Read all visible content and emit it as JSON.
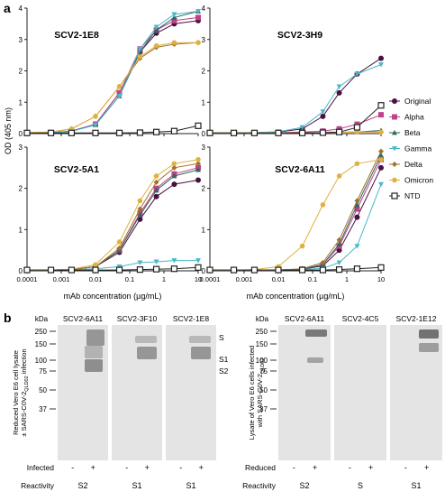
{
  "panel_a": {
    "letter": "a",
    "y_axis_label": "OD (405 nm)",
    "x_axis_label": "mAb concentration (µg/mL)",
    "x_ticks": [
      "0.0001",
      "0.001",
      "0.01",
      "0.1",
      "1",
      "10"
    ],
    "y_ticks_top": [
      "0",
      "1",
      "2",
      "3",
      "4"
    ],
    "y_ticks_bottom": [
      "0",
      "1",
      "2",
      "3"
    ],
    "legend": [
      {
        "name": "Original",
        "color": "#4a1040",
        "marker": "circle"
      },
      {
        "name": "Alpha",
        "color": "#c0408a",
        "marker": "square"
      },
      {
        "name": "Beta",
        "color": "#2a6a60",
        "marker": "triangle-up"
      },
      {
        "name": "Gamma",
        "color": "#4ab8c8",
        "marker": "triangle-down"
      },
      {
        "name": "Delta",
        "color": "#a0722a",
        "marker": "diamond"
      },
      {
        "name": "Omicron",
        "color": "#e0b040",
        "marker": "hexagon"
      },
      {
        "name": "NTD",
        "color": "#222222",
        "marker": "open-square"
      }
    ]
  },
  "chart_data": [
    {
      "type": "line",
      "title": "SCV2-1E8",
      "x_scale": "log",
      "xlim": [
        0.0001,
        10
      ],
      "ylim": [
        0,
        4
      ],
      "x": [
        0.0001,
        0.0005,
        0.002,
        0.01,
        0.05,
        0.2,
        0.6,
        2,
        10
      ],
      "series": [
        {
          "name": "Original",
          "values": [
            0.02,
            0.03,
            0.08,
            0.3,
            1.3,
            2.6,
            3.2,
            3.5,
            3.6
          ]
        },
        {
          "name": "Alpha",
          "values": [
            0.02,
            0.03,
            0.08,
            0.3,
            1.3,
            2.7,
            3.3,
            3.6,
            3.7
          ]
        },
        {
          "name": "Beta",
          "values": [
            0.02,
            0.03,
            0.08,
            0.28,
            1.2,
            2.6,
            3.3,
            3.7,
            3.9
          ]
        },
        {
          "name": "Gamma",
          "values": [
            0.02,
            0.03,
            0.07,
            0.28,
            1.2,
            2.7,
            3.4,
            3.8,
            3.9
          ]
        },
        {
          "name": "Delta",
          "values": [
            0.03,
            0.05,
            0.15,
            0.55,
            1.5,
            2.4,
            2.75,
            2.85,
            2.9
          ]
        },
        {
          "name": "Omicron",
          "values": [
            0.03,
            0.05,
            0.15,
            0.55,
            1.5,
            2.45,
            2.8,
            2.9,
            2.9
          ]
        },
        {
          "name": "NTD",
          "values": [
            0.02,
            0.02,
            0.02,
            0.02,
            0.02,
            0.03,
            0.05,
            0.08,
            0.25
          ]
        }
      ]
    },
    {
      "type": "line",
      "title": "SCV2-3H9",
      "x_scale": "log",
      "xlim": [
        0.0001,
        10
      ],
      "ylim": [
        0,
        4
      ],
      "x": [
        0.0001,
        0.0005,
        0.002,
        0.01,
        0.05,
        0.2,
        0.6,
        2,
        10
      ],
      "series": [
        {
          "name": "Original",
          "values": [
            0.02,
            0.02,
            0.03,
            0.05,
            0.15,
            0.55,
            1.3,
            1.9,
            2.4
          ]
        },
        {
          "name": "Alpha",
          "values": [
            0.02,
            0.02,
            0.02,
            0.03,
            0.05,
            0.08,
            0.15,
            0.3,
            0.6
          ]
        },
        {
          "name": "Beta",
          "values": [
            0.02,
            0.02,
            0.02,
            0.02,
            0.03,
            0.03,
            0.04,
            0.05,
            0.1
          ]
        },
        {
          "name": "Gamma",
          "values": [
            0.02,
            0.02,
            0.03,
            0.06,
            0.2,
            0.7,
            1.5,
            1.9,
            2.2
          ]
        },
        {
          "name": "Delta",
          "values": [
            0.02,
            0.02,
            0.02,
            0.02,
            0.03,
            0.03,
            0.04,
            0.05,
            0.05
          ]
        },
        {
          "name": "Omicron",
          "values": [
            0.02,
            0.02,
            0.02,
            0.02,
            0.03,
            0.03,
            0.04,
            0.05,
            0.05
          ]
        },
        {
          "name": "NTD",
          "values": [
            0.02,
            0.02,
            0.02,
            0.02,
            0.02,
            0.03,
            0.05,
            0.2,
            0.9
          ]
        }
      ]
    },
    {
      "type": "line",
      "title": "SCV2-5A1",
      "x_scale": "log",
      "xlim": [
        0.0001,
        10
      ],
      "ylim": [
        0,
        3
      ],
      "x": [
        0.0001,
        0.0005,
        0.002,
        0.01,
        0.05,
        0.2,
        0.6,
        2,
        10
      ],
      "series": [
        {
          "name": "Original",
          "values": [
            0.02,
            0.02,
            0.03,
            0.1,
            0.45,
            1.25,
            1.8,
            2.1,
            2.2
          ]
        },
        {
          "name": "Alpha",
          "values": [
            0.02,
            0.02,
            0.03,
            0.1,
            0.5,
            1.4,
            2.0,
            2.35,
            2.5
          ]
        },
        {
          "name": "Beta",
          "values": [
            0.02,
            0.02,
            0.03,
            0.1,
            0.5,
            1.35,
            1.95,
            2.3,
            2.45
          ]
        },
        {
          "name": "Gamma",
          "values": [
            0.02,
            0.02,
            0.03,
            0.05,
            0.1,
            0.2,
            0.22,
            0.25,
            0.25
          ]
        },
        {
          "name": "Delta",
          "values": [
            0.02,
            0.02,
            0.03,
            0.1,
            0.55,
            1.5,
            2.15,
            2.5,
            2.6
          ]
        },
        {
          "name": "Omicron",
          "values": [
            0.02,
            0.02,
            0.04,
            0.15,
            0.7,
            1.7,
            2.3,
            2.6,
            2.7
          ]
        },
        {
          "name": "NTD",
          "values": [
            0.02,
            0.02,
            0.02,
            0.02,
            0.02,
            0.03,
            0.04,
            0.05,
            0.08
          ]
        }
      ]
    },
    {
      "type": "line",
      "title": "SCV2-6A11",
      "x_scale": "log",
      "xlim": [
        0.0001,
        10
      ],
      "ylim": [
        0,
        3
      ],
      "x": [
        0.0001,
        0.0005,
        0.002,
        0.01,
        0.05,
        0.2,
        0.6,
        2,
        10
      ],
      "series": [
        {
          "name": "Original",
          "values": [
            0.02,
            0.02,
            0.02,
            0.02,
            0.04,
            0.12,
            0.5,
            1.3,
            2.5
          ]
        },
        {
          "name": "Alpha",
          "values": [
            0.02,
            0.02,
            0.02,
            0.02,
            0.04,
            0.15,
            0.6,
            1.5,
            2.7
          ]
        },
        {
          "name": "Beta",
          "values": [
            0.02,
            0.02,
            0.02,
            0.02,
            0.04,
            0.15,
            0.65,
            1.6,
            2.8
          ]
        },
        {
          "name": "Gamma",
          "values": [
            0.02,
            0.02,
            0.02,
            0.02,
            0.03,
            0.06,
            0.2,
            0.6,
            2.1
          ]
        },
        {
          "name": "Delta",
          "values": [
            0.02,
            0.02,
            0.02,
            0.02,
            0.05,
            0.2,
            0.75,
            1.7,
            2.9
          ]
        },
        {
          "name": "Omicron",
          "values": [
            0.02,
            0.02,
            0.03,
            0.1,
            0.6,
            1.6,
            2.3,
            2.6,
            2.7
          ]
        },
        {
          "name": "NTD",
          "values": [
            0.02,
            0.02,
            0.02,
            0.02,
            0.02,
            0.02,
            0.03,
            0.05,
            0.08
          ]
        }
      ]
    }
  ],
  "panel_b": {
    "letter": "b",
    "kda": "kDa",
    "markers": [
      "250",
      "150",
      "100",
      "75",
      "50",
      "37"
    ],
    "left": {
      "y_label_line1": "Reduced Vero E6 cell lysate",
      "y_label_line2": "± SARS-C0V-2",
      "y_label_sub": "QLD02",
      "y_label_tail": " infection",
      "lanes": [
        "SCV2-6A11",
        "SCV2-3F10",
        "SCV2-1E8"
      ],
      "band_labels": [
        "S",
        "S1",
        "S2"
      ],
      "row1_label": "Infected",
      "row2_label": "Reactivity",
      "minus": "-",
      "plus": "+",
      "reactivity": [
        "S2",
        "S1",
        "S1"
      ]
    },
    "right": {
      "y_label_line1": "Lysate of Vero E6 cells infected",
      "y_label_line2": "with SARS-C0V-2",
      "y_label_sub": "QLD02",
      "lanes": [
        "SCV2-6A11",
        "SCV2-4C5",
        "SCV2-1E12"
      ],
      "band_labels": [
        "S",
        "S1",
        "S2"
      ],
      "row1_label": "Reduced",
      "row2_label": "Reactivity",
      "minus": "-",
      "plus": "+",
      "reactivity": [
        "S2",
        "S",
        "S1"
      ]
    }
  }
}
